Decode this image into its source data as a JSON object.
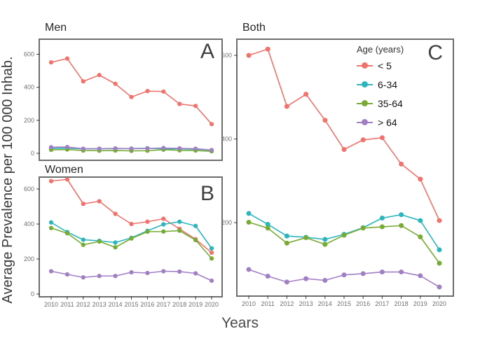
{
  "figure": {
    "y_axis_label": "Average Prevalence per 100 000 Inhab.",
    "x_axis_label": "Years"
  },
  "legend": {
    "title": "Age (years)",
    "items": [
      {
        "label": "< 5",
        "color": "#f0726b"
      },
      {
        "label": "6-34",
        "color": "#2cb5bc"
      },
      {
        "label": "35-64",
        "color": "#77ab35"
      },
      {
        "label": "> 64",
        "color": "#a17fc5"
      }
    ]
  },
  "chart_data": {
    "type": "line",
    "title": "",
    "xlabel": "Years",
    "ylabel": "Average Prevalence per 100 000 Inhab.",
    "x": [
      2010,
      2011,
      2012,
      2013,
      2014,
      2015,
      2016,
      2017,
      2018,
      2019,
      2020
    ],
    "legend_position": "top-right-of-panel-C",
    "grid": false,
    "panels": [
      {
        "id": "men",
        "title": "Men",
        "letter": "A",
        "yticks": [
          0,
          200,
          400,
          600
        ],
        "ylim": [
          -38,
          687
        ],
        "show_x_labels": false,
        "series": [
          {
            "name": "< 5",
            "values": [
              551,
              574,
              436,
              474,
              421,
              341,
              377,
              374,
              299,
              287,
              177
            ]
          },
          {
            "name": "6-34",
            "values": [
              30,
              31,
              27,
              28,
              28,
              29,
              31,
              27,
              27,
              25,
              19
            ]
          },
          {
            "name": "35-64",
            "values": [
              21,
              23,
              17,
              16,
              17,
              15,
              16,
              22,
              18,
              17,
              12
            ]
          },
          {
            "name": "> 64",
            "values": [
              37,
              38,
              28,
              28,
              30,
              28,
              30,
              32,
              30,
              28,
              20
            ]
          }
        ]
      },
      {
        "id": "women",
        "title": "Women",
        "letter": "B",
        "yticks": [
          0,
          200,
          400,
          600
        ],
        "ylim": [
          -12,
          664
        ],
        "show_x_labels": true,
        "series": [
          {
            "name": "< 5",
            "values": [
              645,
              655,
              515,
              530,
              458,
              400,
              413,
              430,
              372,
              313,
              236
            ]
          },
          {
            "name": "6-34",
            "values": [
              409,
              354,
              310,
              304,
              294,
              321,
              361,
              398,
              413,
              389,
              261
            ]
          },
          {
            "name": "35-64",
            "values": [
              377,
              347,
              281,
              300,
              267,
              317,
              356,
              357,
              362,
              308,
              203
            ]
          },
          {
            "name": "> 64",
            "values": [
              130,
              112,
              95,
              103,
              103,
              124,
              120,
              130,
              128,
              118,
              76
            ]
          }
        ]
      },
      {
        "id": "both",
        "title": "Both",
        "letter": "C",
        "yticks": [
          200,
          400,
          600
        ],
        "ylim": [
          26,
          637
        ],
        "show_x_labels": true,
        "series": [
          {
            "name": "< 5",
            "values": [
              600,
              615,
              478,
              507,
              445,
              375,
              398,
              403,
              340,
              304,
              205
            ]
          },
          {
            "name": "6-34",
            "values": [
              222,
              196,
              168,
              165,
              160,
              172,
              188,
              211,
              219,
              205,
              135
            ]
          },
          {
            "name": "35-64",
            "values": [
              201,
              187,
              151,
              164,
              148,
              170,
              187,
              190,
              193,
              166,
              103
            ]
          },
          {
            "name": "> 64",
            "values": [
              88,
              72,
              58,
              66,
              62,
              75,
              78,
              82,
              82,
              73,
              46
            ]
          }
        ]
      }
    ]
  }
}
